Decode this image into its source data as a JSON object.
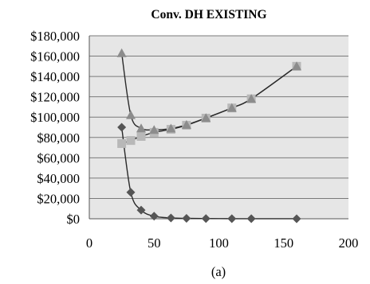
{
  "chart_data": {
    "type": "scatter",
    "title": "Conv. DH EXISTING",
    "caption": "(a)",
    "xlim": [
      0,
      200
    ],
    "ylim": [
      0,
      180000
    ],
    "x_ticks": [
      "0",
      "50",
      "100",
      "150",
      "200"
    ],
    "y_ticks": [
      "$0",
      "$20,000",
      "$40,000",
      "$60,000",
      "$80,000",
      "$100,000",
      "$120,000",
      "$140,000",
      "$160,000",
      "$180,000"
    ],
    "grid": true,
    "plot_background": "#e6e6e6",
    "series": [
      {
        "marker": "diamond",
        "color": "#555555",
        "x": [
          25,
          32,
          40,
          50,
          63,
          75,
          90,
          110,
          125,
          160
        ],
        "y": [
          90000,
          26000,
          8500,
          2500,
          800,
          400,
          200,
          100,
          50,
          20
        ]
      },
      {
        "marker": "square",
        "color": "#b8b8b8",
        "x": [
          25,
          32,
          40,
          50,
          63,
          75,
          90,
          110,
          125,
          160
        ],
        "y": [
          74000,
          77000,
          81000,
          85000,
          88000,
          92000,
          99000,
          109000,
          118000,
          150000
        ]
      },
      {
        "marker": "triangle",
        "color": "#8c8c8c",
        "x": [
          25,
          32,
          40,
          50,
          63,
          75,
          90,
          110,
          125,
          160
        ],
        "y": [
          163000,
          102000,
          89000,
          87500,
          88800,
          92400,
          99200,
          109100,
          118050,
          150020
        ]
      }
    ]
  }
}
